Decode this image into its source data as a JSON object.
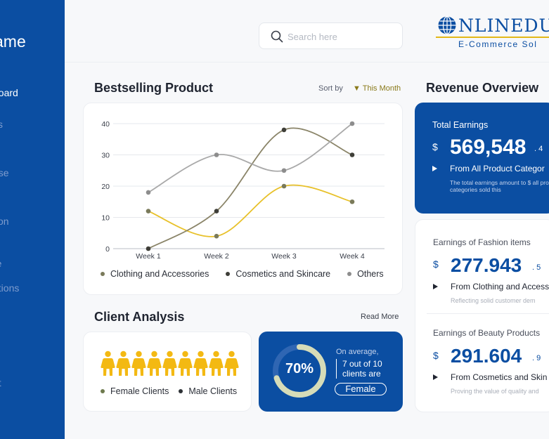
{
  "sidebar": {
    "brand": "ame",
    "items": [
      {
        "label": "board",
        "active": true
      },
      {
        "label": "cs",
        "active": false
      },
      {
        "label": "s",
        "active": false
      },
      {
        "label": "ase",
        "active": false
      },
      {
        "label": "tion",
        "active": false
      },
      {
        "label": "re",
        "active": false
      },
      {
        "label": "ations",
        "active": false
      },
      {
        "label": "s",
        "active": false
      },
      {
        "label": "ut",
        "active": false
      }
    ]
  },
  "header": {
    "search_placeholder": "Search here",
    "logo_text": "NLINEDU",
    "logo_sub": "E-Commerce Sol"
  },
  "bestselling": {
    "title": "Bestselling Product",
    "sort_label": "Sort by",
    "sort_value": "▼ This Month"
  },
  "chart_data": {
    "type": "line",
    "categories": [
      "Week 1",
      "Week 2",
      "Week 3",
      "Week 4"
    ],
    "yticks": [
      0,
      10,
      20,
      30,
      40
    ],
    "ylim": [
      0,
      40
    ],
    "grid": true,
    "legend": "bottom",
    "series": [
      {
        "name": "Clothing and Accessories",
        "values": [
          12,
          4,
          20,
          15
        ],
        "color": "#e8c12a",
        "dot_color": "#7a7a5a"
      },
      {
        "name": "Cosmetics and Skincare",
        "values": [
          0,
          12,
          38,
          30
        ],
        "color": "#8a8468",
        "dot_color": "#3e3e38"
      },
      {
        "name": "Others",
        "values": [
          18,
          30,
          25,
          40
        ],
        "color": "#a9a9a9",
        "dot_color": "#8d8d8d"
      }
    ]
  },
  "client_analysis": {
    "title": "Client Analysis",
    "read_more": "Read More",
    "female_label": "Female Clients",
    "male_label": "Male Clients",
    "people_count": 9,
    "female_color": "#6e7a4e",
    "male_color": "#2e3236",
    "people_color": "#f3b913"
  },
  "average": {
    "percent_value": 70,
    "percent_label": "70%",
    "line1": "On average,",
    "line2": "7 out of 10 clients are",
    "badge": "Female"
  },
  "revenue": {
    "title": "Revenue Overview",
    "total": {
      "label": "Total Earnings",
      "currency": "$",
      "amount": "569,548",
      "cents": ". 4",
      "from": "From All Product Categor",
      "note": "The total earnings amount to $ all product categories sold this"
    },
    "fashion": {
      "label": "Earnings of Fashion items",
      "currency": "$",
      "amount": "277.943",
      "cents": ". 5",
      "from": "From Clothing and Access",
      "note": "Reflecting solid customer dem"
    },
    "beauty": {
      "label": "Earnings of Beauty Products",
      "currency": "$",
      "amount": "291.604",
      "cents": ". 9",
      "from": "From Cosmetics and Skin",
      "note": "Proving the value of quality and"
    }
  }
}
